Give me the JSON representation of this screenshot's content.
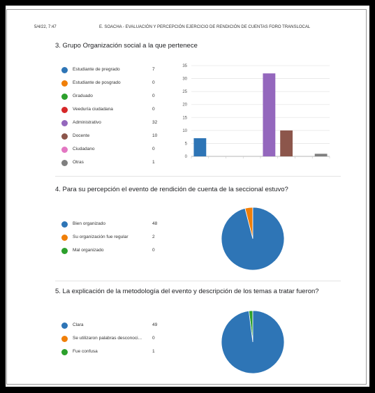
{
  "header": {
    "date": "5/4/22, 7:47",
    "title": "E. SOACHA - EVALUACIÓN Y PERCEPCIÓN EJERCICIO DE RENDICIÓN DE CUENTAS FORO TRANSLOCAL"
  },
  "questions": [
    {
      "title": "3. Grupo Organización social a la que pertenece",
      "options": [
        {
          "label": "Estudiante de pregrado",
          "value": "7",
          "color": "#2e75b6"
        },
        {
          "label": "Estudiante de posgrado",
          "value": "0",
          "color": "#f07f09"
        },
        {
          "label": "Graduado",
          "value": "0",
          "color": "#2ca02c"
        },
        {
          "label": "Veeduría ciudadana",
          "value": "0",
          "color": "#d62728"
        },
        {
          "label": "Administrativo",
          "value": "32",
          "color": "#9467bd"
        },
        {
          "label": "Docente",
          "value": "10",
          "color": "#8c564b"
        },
        {
          "label": "Ciudadano",
          "value": "0",
          "color": "#e377c2"
        },
        {
          "label": "Otras",
          "value": "1",
          "color": "#7f7f7f"
        }
      ]
    },
    {
      "title": "4. Para su percepción el evento de rendición de cuenta de la seccional estuvo?",
      "options": [
        {
          "label": "Bien organizado",
          "value": "48",
          "color": "#2e75b6"
        },
        {
          "label": "Su organización fue regular",
          "value": "2",
          "color": "#f07f09"
        },
        {
          "label": "Mal organizado",
          "value": "0",
          "color": "#2ca02c"
        }
      ]
    },
    {
      "title": "5. La explicación de la metodología del evento y descripción de los temas a tratar fueron?",
      "options": [
        {
          "label": "Clara",
          "value": "49",
          "color": "#2e75b6"
        },
        {
          "label": "Se utilizaron palabras desconoci...",
          "value": "0",
          "color": "#f07f09"
        },
        {
          "label": "Fue confusa",
          "value": "1",
          "color": "#2ca02c"
        }
      ]
    }
  ],
  "chart_data": [
    {
      "type": "bar",
      "categories": [
        "Estudiante de pregrado",
        "Estudiante de posgrado",
        "Graduado",
        "Veeduría ciudadana",
        "Administrativo",
        "Docente",
        "Ciudadano",
        "Otras"
      ],
      "values": [
        7,
        0,
        0,
        0,
        32,
        10,
        0,
        1
      ],
      "colors": [
        "#2e75b6",
        "#f07f09",
        "#2ca02c",
        "#d62728",
        "#9467bd",
        "#8c564b",
        "#e377c2",
        "#7f7f7f"
      ],
      "ylim": [
        0,
        35
      ],
      "yticks": [
        "0",
        "5",
        "10",
        "15",
        "20",
        "25",
        "30",
        "35"
      ],
      "grid": true
    },
    {
      "type": "pie",
      "categories": [
        "Bien organizado",
        "Su organización fue regular",
        "Mal organizado"
      ],
      "values": [
        48,
        2,
        0
      ],
      "colors": [
        "#2e75b6",
        "#f07f09",
        "#2ca02c"
      ]
    },
    {
      "type": "pie",
      "categories": [
        "Clara",
        "Se utilizaron palabras desconoci...",
        "Fue confusa"
      ],
      "values": [
        49,
        0,
        1
      ],
      "colors": [
        "#2e75b6",
        "#f07f09",
        "#2ca02c"
      ]
    }
  ]
}
